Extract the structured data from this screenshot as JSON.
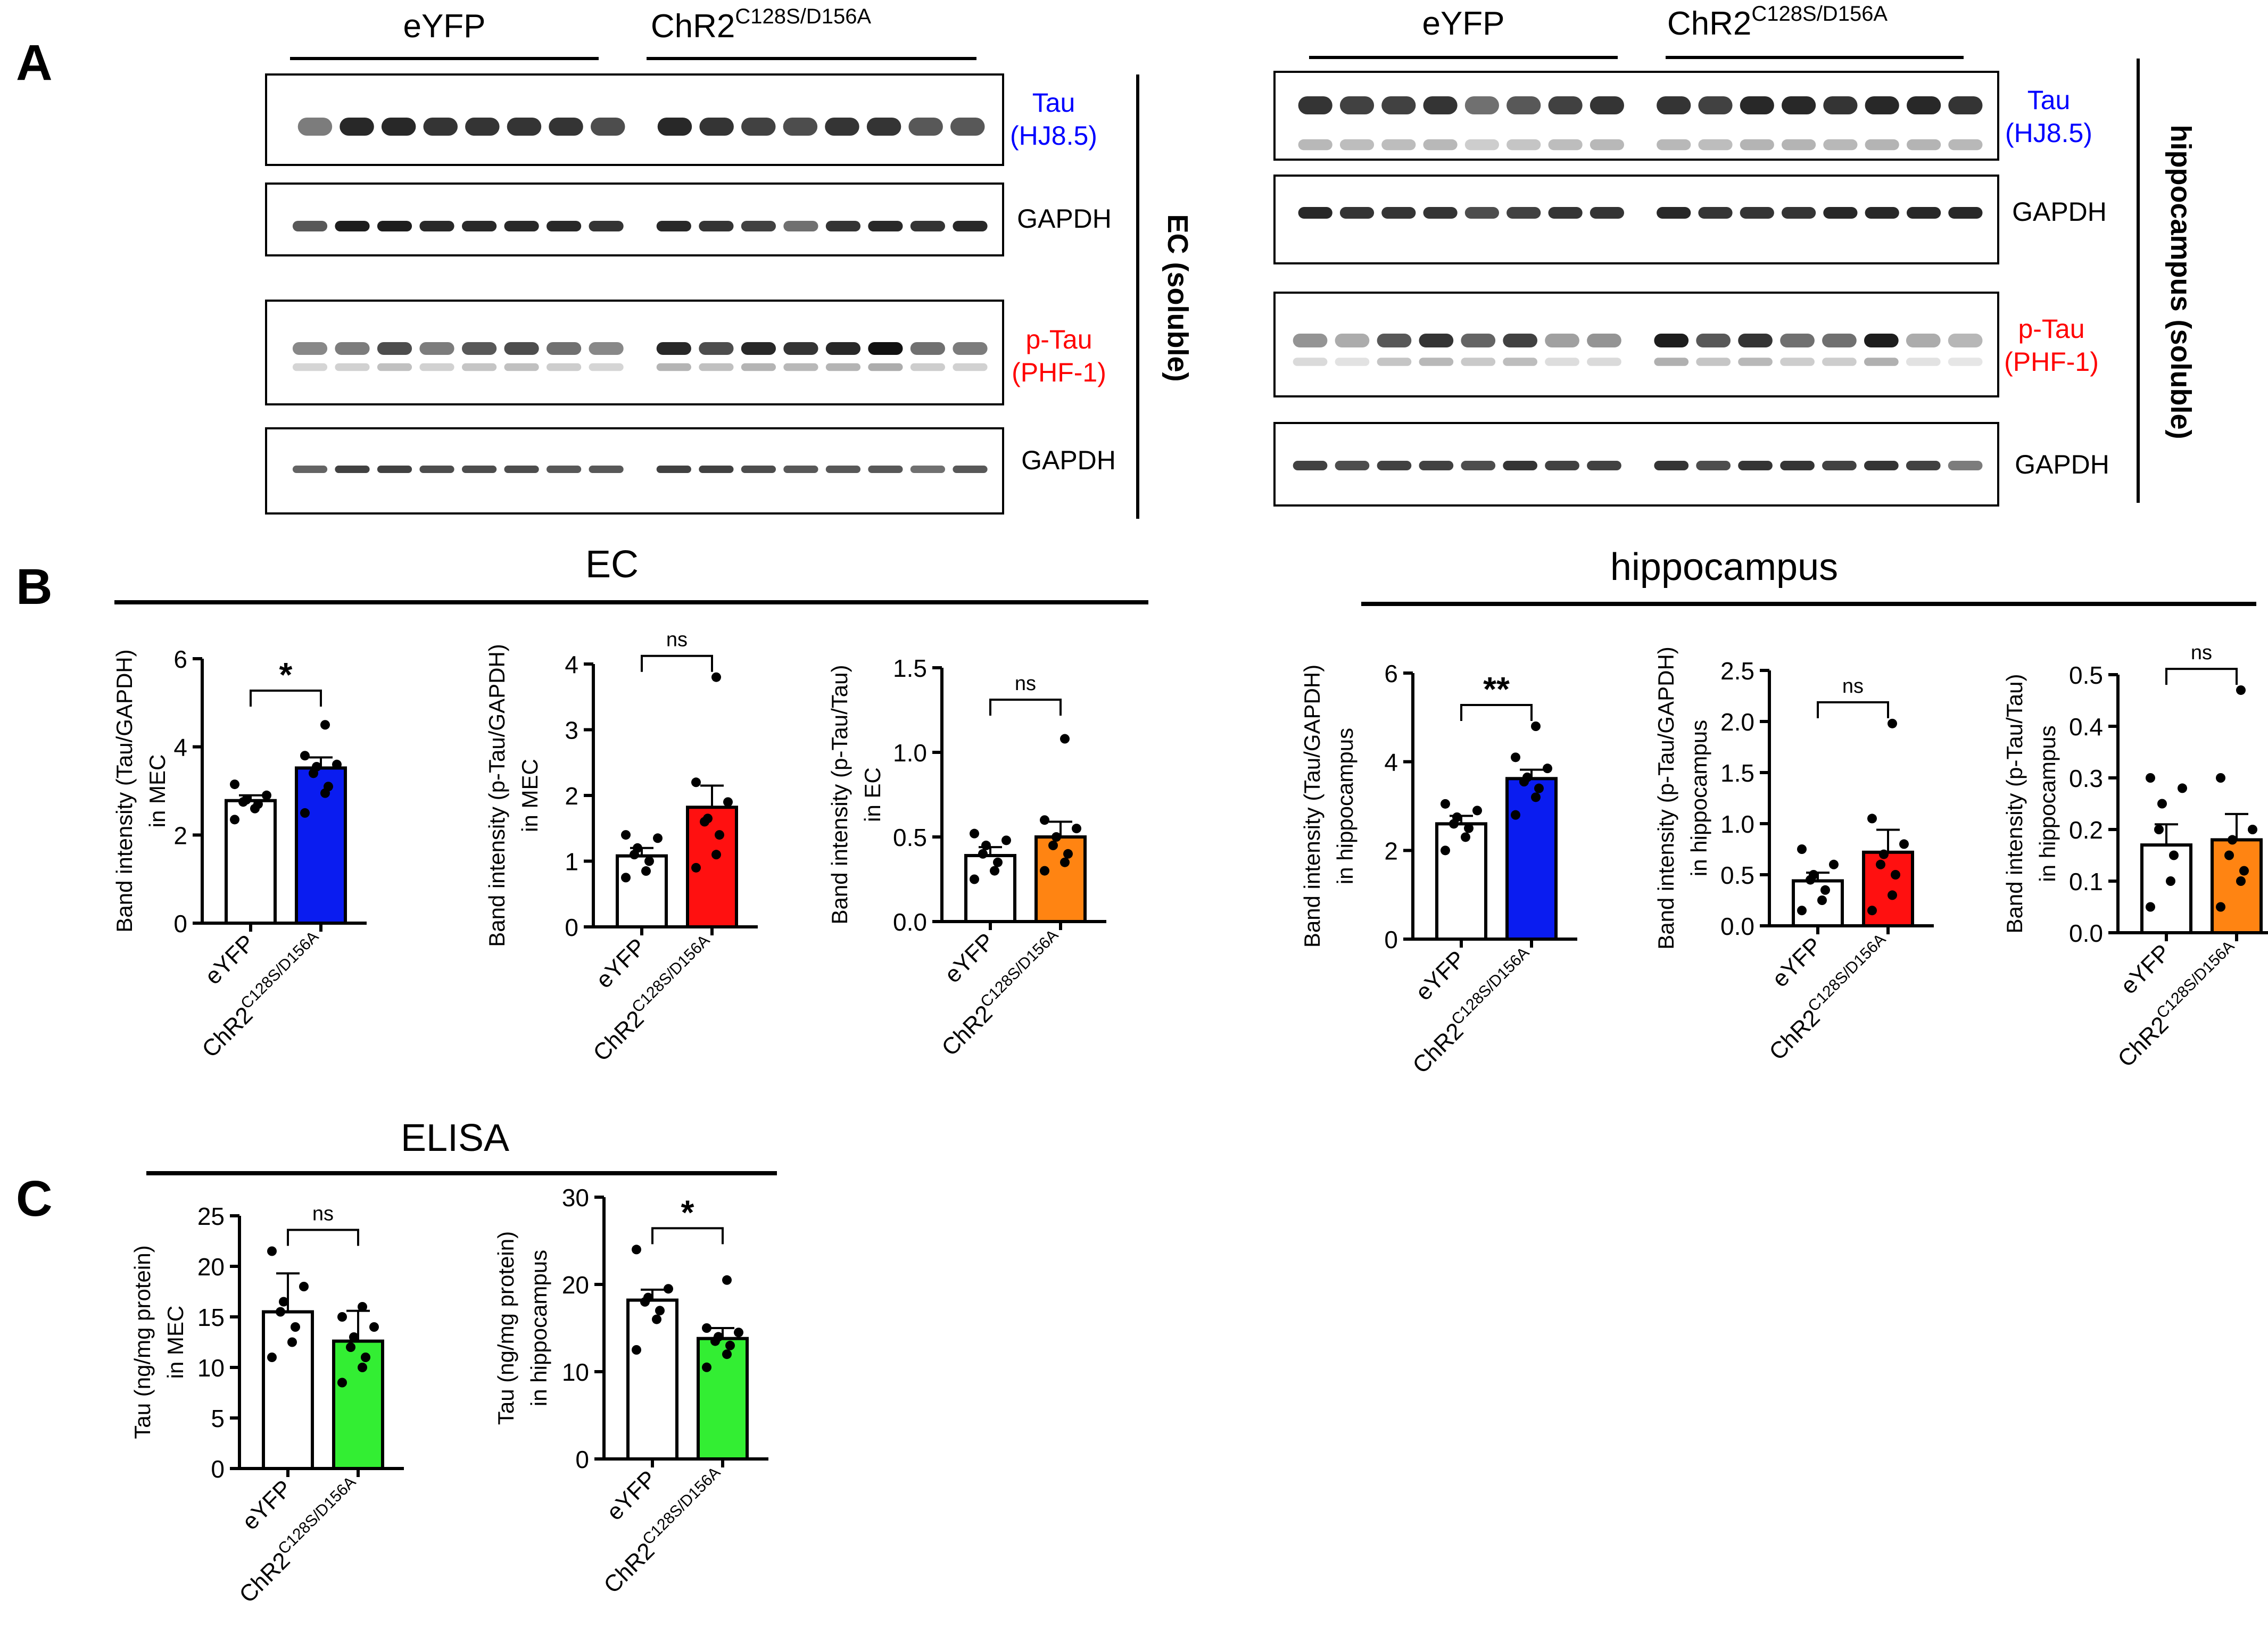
{
  "panels": {
    "a": "A",
    "b": "B",
    "c": "C"
  },
  "blots": {
    "group_eyfp": "eYFP",
    "group_chr2_base": "ChR2",
    "group_chr2_sup": "C128S/D156A",
    "ec_label": "EC (soluble)",
    "hippocampus_label": "hippocampus (soluble)",
    "tau_label": "Tau",
    "tau_antibody": "(HJ8.5)",
    "ptau_label": "p-Tau",
    "ptau_antibody": "(PHF-1)",
    "gapdh_label": "GAPDH",
    "colors": {
      "tau": "#0000ff",
      "ptau": "#ff0000",
      "band": "#111111"
    }
  },
  "sections": {
    "ec": "EC",
    "hippocampus": "hippocampus",
    "elisa": "ELISA"
  },
  "chart_data": [
    {
      "id": "ec-tau",
      "type": "bar",
      "ylabel_line1": "Band intensity (Tau/GAPDH)",
      "ylabel_line2": "in MEC",
      "ylim": [
        0,
        6
      ],
      "yticks": [
        "0",
        "2",
        "4",
        "6"
      ],
      "categories": [
        "eYFP",
        "ChR2C128S/D156A"
      ],
      "x_base": "ChR2",
      "x_sup": "C128S/D156A",
      "values": [
        2.78,
        3.52
      ],
      "sem": [
        0.12,
        0.24
      ],
      "colors": [
        "#ffffff",
        "#0a1cf0"
      ],
      "points": [
        [
          2.35,
          2.6,
          2.7,
          2.75,
          2.8,
          2.9,
          3.15
        ],
        [
          2.5,
          2.95,
          3.1,
          3.4,
          3.55,
          3.6,
          3.8,
          4.5
        ]
      ],
      "significance": "*"
    },
    {
      "id": "ec-ptau-gapdh",
      "type": "bar",
      "ylabel_line1": "Band intensity (p-Tau/GAPDH)",
      "ylabel_line2": "in MEC",
      "ylim": [
        0,
        4
      ],
      "yticks": [
        "0",
        "1",
        "2",
        "3",
        "4"
      ],
      "categories": [
        "eYFP",
        "ChR2C128S/D156A"
      ],
      "x_base": "ChR2",
      "x_sup": "C128S/D156A",
      "values": [
        1.08,
        1.82
      ],
      "sem": [
        0.12,
        0.33
      ],
      "colors": [
        "#ffffff",
        "#ff1010"
      ],
      "points": [
        [
          0.75,
          0.85,
          1.0,
          1.1,
          1.2,
          1.35,
          1.4
        ],
        [
          0.9,
          1.1,
          1.4,
          1.6,
          1.65,
          1.9,
          2.2,
          3.8
        ]
      ],
      "significance": "ns"
    },
    {
      "id": "ec-ptau-tau",
      "type": "bar",
      "ylabel_line1": "Band intensity (p-Tau/Tau)",
      "ylabel_line2": "in EC",
      "ylim": [
        0,
        1.5
      ],
      "yticks": [
        "0.0",
        "0.5",
        "1.0",
        "1.5"
      ],
      "categories": [
        "eYFP",
        "ChR2C128S/D156A"
      ],
      "x_base": "ChR2",
      "x_sup": "C128S/D156A",
      "values": [
        0.39,
        0.5
      ],
      "sem": [
        0.05,
        0.09
      ],
      "colors": [
        "#ffffff",
        "#ff8412"
      ],
      "points": [
        [
          0.25,
          0.3,
          0.35,
          0.4,
          0.45,
          0.48,
          0.52
        ],
        [
          0.3,
          0.35,
          0.4,
          0.45,
          0.5,
          0.55,
          0.6,
          1.08
        ]
      ],
      "significance": "ns"
    },
    {
      "id": "hip-tau",
      "type": "bar",
      "ylabel_line1": "Band intensity (Tau/GAPDH)",
      "ylabel_line2": "in hippocampus",
      "ylim": [
        0,
        6
      ],
      "yticks": [
        "0",
        "2",
        "4",
        "6"
      ],
      "categories": [
        "eYFP",
        "ChR2C128S/D156A"
      ],
      "x_base": "ChR2",
      "x_sup": "C128S/D156A",
      "values": [
        2.6,
        3.62
      ],
      "sem": [
        0.18,
        0.2
      ],
      "colors": [
        "#ffffff",
        "#0a1cf0"
      ],
      "points": [
        [
          2.0,
          2.3,
          2.5,
          2.6,
          2.75,
          2.9,
          3.05
        ],
        [
          2.8,
          3.2,
          3.4,
          3.55,
          3.65,
          3.85,
          4.1,
          4.8
        ]
      ],
      "significance": "**"
    },
    {
      "id": "hip-ptau-gapdh",
      "type": "bar",
      "ylabel_line1": "Band intensity (p-Tau/GAPDH)",
      "ylabel_line2": "in hippocampus",
      "ylim": [
        0,
        2.5
      ],
      "yticks": [
        "0.0",
        "0.5",
        "1.0",
        "1.5",
        "2.0",
        "2.5"
      ],
      "categories": [
        "eYFP",
        "ChR2C128S/D156A"
      ],
      "x_base": "ChR2",
      "x_sup": "C128S/D156A",
      "values": [
        0.44,
        0.72
      ],
      "sem": [
        0.08,
        0.22
      ],
      "colors": [
        "#ffffff",
        "#ff1010"
      ],
      "points": [
        [
          0.15,
          0.25,
          0.35,
          0.45,
          0.5,
          0.6,
          0.75
        ],
        [
          0.15,
          0.3,
          0.5,
          0.6,
          0.7,
          0.8,
          1.05,
          1.98
        ]
      ],
      "significance": "ns"
    },
    {
      "id": "hip-ptau-tau",
      "type": "bar",
      "ylabel_line1": "Band intensity (p-Tau/Tau)",
      "ylabel_line2": "in hippocampus",
      "ylim": [
        0,
        0.5
      ],
      "yticks": [
        "0.0",
        "0.1",
        "0.2",
        "0.3",
        "0.4",
        "0.5"
      ],
      "categories": [
        "eYFP",
        "ChR2C128S/D156A"
      ],
      "x_base": "ChR2",
      "x_sup": "C128S/D156A",
      "values": [
        0.17,
        0.18
      ],
      "sem": [
        0.04,
        0.05
      ],
      "colors": [
        "#ffffff",
        "#ff8412"
      ],
      "points": [
        [
          0.05,
          0.1,
          0.15,
          0.2,
          0.25,
          0.28,
          0.3
        ],
        [
          0.05,
          0.1,
          0.12,
          0.15,
          0.18,
          0.2,
          0.3,
          0.47
        ]
      ],
      "significance": "ns"
    },
    {
      "id": "elisa-mec",
      "type": "bar",
      "ylabel_line1": "Tau (ng/mg protein)",
      "ylabel_line2": "in MEC",
      "ylim": [
        0,
        25
      ],
      "yticks": [
        "0",
        "5",
        "10",
        "15",
        "20",
        "25"
      ],
      "categories": [
        "eYFP",
        "ChR2C128S/D156A"
      ],
      "x_base": "ChR2",
      "x_sup": "C128S/D156A",
      "values": [
        15.5,
        12.6
      ],
      "sem": [
        3.8,
        3.0
      ],
      "colors": [
        "#ffffff",
        "#33ee33"
      ],
      "points": [
        [
          11.0,
          12.5,
          14.0,
          15.5,
          16.5,
          18.0,
          21.5
        ],
        [
          8.5,
          10.0,
          11.0,
          12.0,
          13.0,
          14.0,
          15.0,
          16.0
        ]
      ],
      "significance": "ns"
    },
    {
      "id": "elisa-hip",
      "type": "bar",
      "ylabel_line1": "Tau (ng/mg protein)",
      "ylabel_line2": "in hippocampus",
      "ylim": [
        0,
        30
      ],
      "yticks": [
        "0",
        "10",
        "20",
        "30"
      ],
      "categories": [
        "eYFP",
        "ChR2C128S/D156A"
      ],
      "x_base": "ChR2",
      "x_sup": "C128S/D156A",
      "values": [
        18.2,
        13.8
      ],
      "sem": [
        1.2,
        1.2
      ],
      "colors": [
        "#ffffff",
        "#33ee33"
      ],
      "points": [
        [
          12.5,
          16.0,
          17.0,
          18.0,
          18.5,
          19.5,
          24.0
        ],
        [
          10.5,
          12.0,
          13.0,
          13.5,
          14.0,
          14.5,
          15.0,
          20.5
        ]
      ],
      "significance": "*"
    }
  ]
}
